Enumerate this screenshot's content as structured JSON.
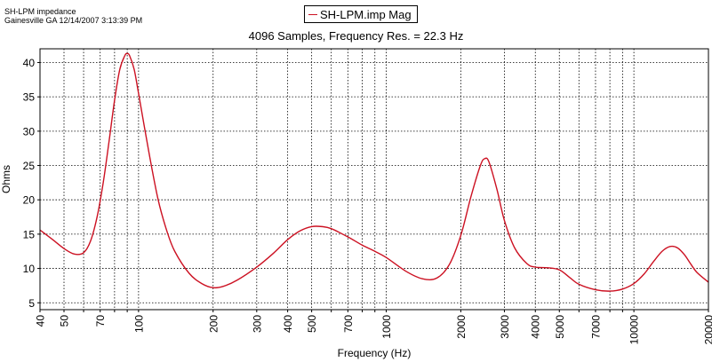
{
  "header": {
    "line1": "SH-LPM impedance",
    "line2": "Gainesville GA 12/14/2007 3:13:39 PM"
  },
  "chart_data": {
    "type": "line",
    "subtitle": "4096 Samples, Frequency Res. = 22.3 Hz",
    "xlabel": "Frequency (Hz)",
    "ylabel": "Ohms",
    "x_scale": "log",
    "xlim": [
      40,
      20000
    ],
    "ylim": [
      4,
      42
    ],
    "grid": true,
    "legend_position": "top-center",
    "line_color": "#cc1122",
    "x_ticks": [
      {
        "value": 40,
        "label": "40"
      },
      {
        "value": 50,
        "label": "50"
      },
      {
        "value": 60,
        "label": ""
      },
      {
        "value": 70,
        "label": "70"
      },
      {
        "value": 80,
        "label": ""
      },
      {
        "value": 90,
        "label": ""
      },
      {
        "value": 100,
        "label": "100"
      },
      {
        "value": 200,
        "label": "200"
      },
      {
        "value": 300,
        "label": "300"
      },
      {
        "value": 400,
        "label": "400"
      },
      {
        "value": 500,
        "label": "500"
      },
      {
        "value": 600,
        "label": ""
      },
      {
        "value": 700,
        "label": "700"
      },
      {
        "value": 800,
        "label": ""
      },
      {
        "value": 900,
        "label": ""
      },
      {
        "value": 1000,
        "label": "1000"
      },
      {
        "value": 2000,
        "label": "2000"
      },
      {
        "value": 3000,
        "label": "3000"
      },
      {
        "value": 4000,
        "label": "4000"
      },
      {
        "value": 5000,
        "label": "5000"
      },
      {
        "value": 6000,
        "label": ""
      },
      {
        "value": 7000,
        "label": "7000"
      },
      {
        "value": 8000,
        "label": ""
      },
      {
        "value": 9000,
        "label": ""
      },
      {
        "value": 10000,
        "label": "10000"
      },
      {
        "value": 20000,
        "label": "20000"
      }
    ],
    "y_ticks": [
      5,
      10,
      15,
      20,
      25,
      30,
      35,
      40
    ],
    "series": [
      {
        "name": "SH-LPM.imp Mag",
        "points": [
          [
            40,
            15.6
          ],
          [
            45,
            14.2
          ],
          [
            50,
            12.9
          ],
          [
            55,
            12.1
          ],
          [
            60,
            12.3
          ],
          [
            64,
            14.0
          ],
          [
            68,
            17.5
          ],
          [
            72,
            22.5
          ],
          [
            76,
            28.5
          ],
          [
            80,
            34.5
          ],
          [
            84,
            39.0
          ],
          [
            88,
            41.0
          ],
          [
            90,
            41.3
          ],
          [
            92,
            41.0
          ],
          [
            96,
            39.0
          ],
          [
            100,
            35.5
          ],
          [
            110,
            27.0
          ],
          [
            120,
            20.0
          ],
          [
            130,
            15.5
          ],
          [
            140,
            12.5
          ],
          [
            160,
            9.3
          ],
          [
            180,
            7.8
          ],
          [
            200,
            7.2
          ],
          [
            220,
            7.4
          ],
          [
            250,
            8.3
          ],
          [
            300,
            10.2
          ],
          [
            350,
            12.2
          ],
          [
            400,
            14.2
          ],
          [
            450,
            15.5
          ],
          [
            500,
            16.1
          ],
          [
            550,
            16.1
          ],
          [
            600,
            15.8
          ],
          [
            700,
            14.6
          ],
          [
            800,
            13.4
          ],
          [
            900,
            12.5
          ],
          [
            1000,
            11.6
          ],
          [
            1200,
            9.6
          ],
          [
            1400,
            8.5
          ],
          [
            1600,
            8.6
          ],
          [
            1800,
            10.6
          ],
          [
            2000,
            14.8
          ],
          [
            2200,
            20.5
          ],
          [
            2400,
            25.0
          ],
          [
            2500,
            26.0
          ],
          [
            2600,
            25.5
          ],
          [
            2800,
            21.5
          ],
          [
            3000,
            17.0
          ],
          [
            3300,
            13.0
          ],
          [
            3700,
            10.7
          ],
          [
            4000,
            10.2
          ],
          [
            4500,
            10.1
          ],
          [
            5000,
            9.8
          ],
          [
            5500,
            8.7
          ],
          [
            6000,
            7.7
          ],
          [
            7000,
            6.9
          ],
          [
            8000,
            6.7
          ],
          [
            9000,
            7.0
          ],
          [
            10000,
            7.8
          ],
          [
            11000,
            9.2
          ],
          [
            12000,
            11.0
          ],
          [
            13000,
            12.5
          ],
          [
            14000,
            13.2
          ],
          [
            15000,
            13.0
          ],
          [
            16000,
            12.0
          ],
          [
            17000,
            10.6
          ],
          [
            18000,
            9.4
          ],
          [
            20000,
            8.0
          ]
        ]
      }
    ]
  }
}
